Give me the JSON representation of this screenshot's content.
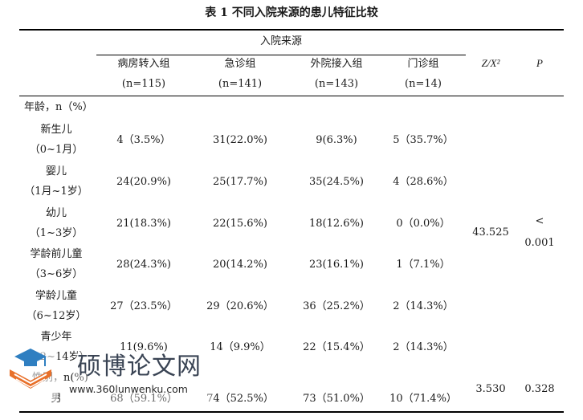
{
  "title": "表 1  不同入院来源的患儿特征比较",
  "header": {
    "group": "入院来源",
    "cols": [
      {
        "name": "病房转入组",
        "n": "(n=115)"
      },
      {
        "name": "急诊组",
        "n": "(n=141)"
      },
      {
        "name": "外院接入组",
        "n": "(n=143)"
      },
      {
        "name": "门诊组",
        "n": "(n=14)"
      }
    ],
    "stat": "Z/X²",
    "p": "P"
  },
  "rows": {
    "age_header": "年龄，n（%）",
    "age": [
      {
        "l1": "新生儿",
        "l2": "（0~1月）",
        "v": [
          "4（3.5%）",
          "31(22.0%)",
          "9(6.3%)",
          "5（35.7%）"
        ]
      },
      {
        "l1": "婴儿",
        "l2": "（1月~1岁）",
        "v": [
          "24(20.9%)",
          "25(17.7%)",
          "35(24.5%)",
          "4（28.6%）"
        ]
      },
      {
        "l1": "幼儿",
        "l2": "（1~3岁）",
        "v": [
          "21(18.3%)",
          "22(15.6%)",
          "18(12.6%)",
          "0（0.0%）"
        ]
      },
      {
        "l1": "学龄前儿童",
        "l2": "（3~6岁）",
        "v": [
          "28(24.3%)",
          "20(14.2%)",
          "23(16.1%)",
          "1（7.1%）"
        ]
      },
      {
        "l1": "学龄儿童",
        "l2": "（6~12岁）",
        "v": [
          "27（23.5%）",
          "29（20.6%）",
          "36（25.2%）",
          "2（14.3%）"
        ]
      },
      {
        "l1": "青少年",
        "l2": "（12~14岁）",
        "v": [
          "11(9.6%)",
          "14（9.9%）",
          "22（15.4%）",
          "2（14.3%）"
        ]
      }
    ],
    "age_stat": "43.525",
    "age_p1": "<",
    "age_p2": "0.001",
    "sex_header": "性别，n(%)",
    "male_label": "男",
    "male": [
      "68（59.1%）",
      "74（52.5%）",
      "73（51.0%）",
      "10（71.4%）"
    ],
    "sex_stat": "3.530",
    "sex_p": "0.328"
  },
  "watermark": {
    "text": "硕博论文网",
    "url": "www.360lunwenku.com",
    "colors": {
      "orange": "#e8702a",
      "blue": "#2f7fc1",
      "dark": "#3a4454"
    }
  }
}
